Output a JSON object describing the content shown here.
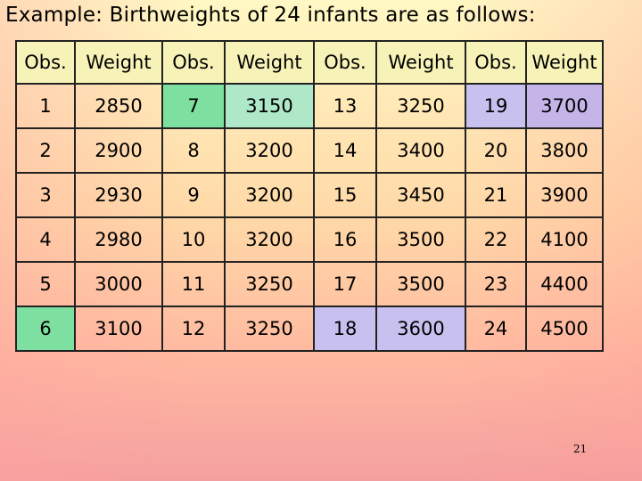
{
  "title": "Example: Birthweights of 24 infants are as follows:",
  "table": {
    "headers": [
      "Obs.",
      "Weight",
      "Obs.",
      "Weight",
      "Obs.",
      "Weight",
      "Obs.",
      "Weight"
    ],
    "rows": [
      [
        "1",
        "2850",
        "7",
        "3150",
        "13",
        "3250",
        "19",
        "3700"
      ],
      [
        "2",
        "2900",
        "8",
        "3200",
        "14",
        "3400",
        "20",
        "3800"
      ],
      [
        "3",
        "2930",
        "9",
        "3200",
        "15",
        "3450",
        "21",
        "3900"
      ],
      [
        "4",
        "2980",
        "10",
        "3200",
        "16",
        "3500",
        "22",
        "4100"
      ],
      [
        "5",
        "3000",
        "11",
        "3250",
        "17",
        "3500",
        "23",
        "4400"
      ],
      [
        "6",
        "3100",
        "12",
        "3250",
        "18",
        "3600",
        "24",
        "4500"
      ]
    ]
  },
  "page_number": "21",
  "colors": {
    "highlight_green": "#7ee0a0",
    "highlight_teal": "#aee8c8",
    "highlight_lavender": "#c8c0ee",
    "highlight_purple": "#c4b4e8"
  }
}
